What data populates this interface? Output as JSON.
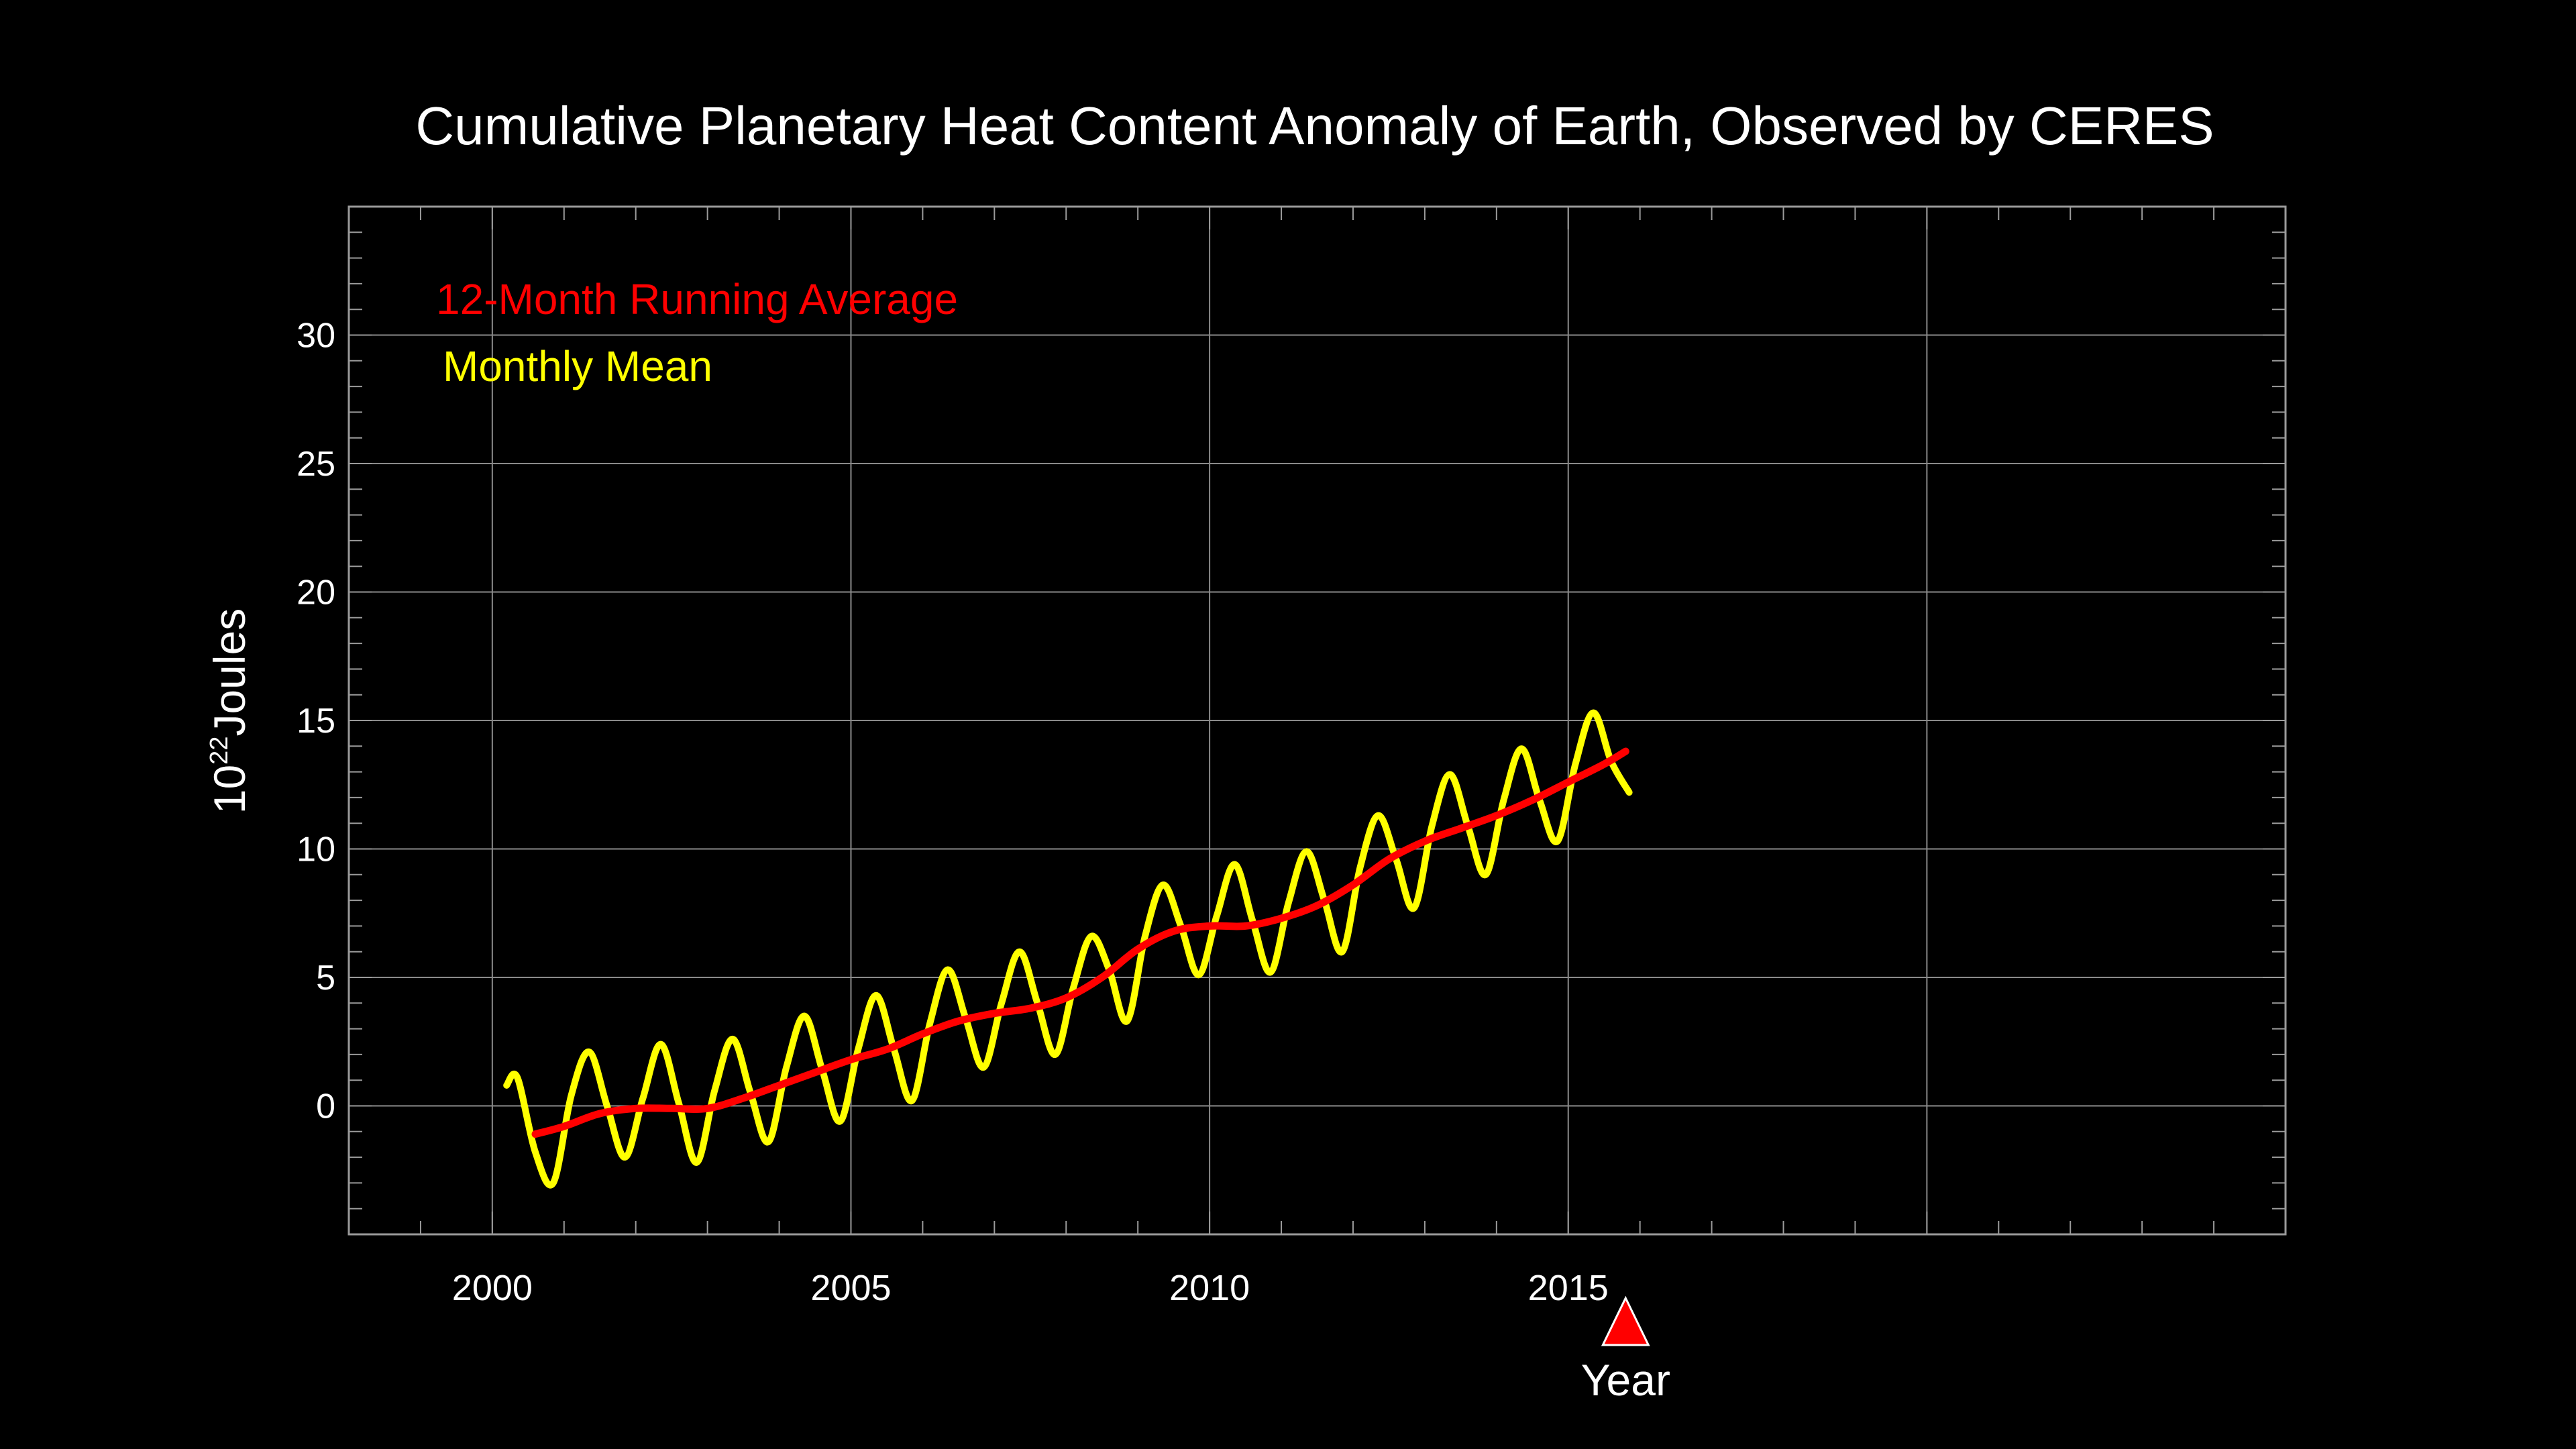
{
  "chart_data": {
    "type": "line",
    "title": "Cumulative Planetary Heat Content Anomaly of Earth, Observed by CERES",
    "ylabel_base": "10",
    "ylabel_exponent": "22",
    "ylabel_unit": "Joules",
    "xlabel": "Year",
    "xlim": [
      1998,
      2025
    ],
    "ylim": [
      -5,
      35
    ],
    "x_ticks": [
      2000,
      2005,
      2010,
      2015
    ],
    "y_ticks": [
      0,
      5,
      10,
      15,
      20,
      25,
      30
    ],
    "grid": true,
    "legend_position": "top-left",
    "marker_x": 2015.8,
    "series": [
      {
        "name": "12-Month Running Average",
        "color": "#ff0000",
        "x": [
          2000.6,
          2001.0,
          2001.5,
          2002.0,
          2002.5,
          2003.0,
          2003.5,
          2004.0,
          2004.5,
          2005.0,
          2005.5,
          2006.0,
          2006.5,
          2007.0,
          2007.5,
          2008.0,
          2008.5,
          2009.0,
          2009.5,
          2010.0,
          2010.5,
          2011.0,
          2011.5,
          2012.0,
          2012.5,
          2013.0,
          2013.5,
          2014.0,
          2014.5,
          2015.0,
          2015.5,
          2015.8
        ],
        "values": [
          -1.1,
          -0.8,
          -0.3,
          -0.1,
          -0.1,
          -0.1,
          0.3,
          0.8,
          1.3,
          1.8,
          2.2,
          2.8,
          3.3,
          3.6,
          3.8,
          4.2,
          5.0,
          6.1,
          6.8,
          7.0,
          7.0,
          7.3,
          7.8,
          8.6,
          9.6,
          10.3,
          10.8,
          11.3,
          11.9,
          12.6,
          13.3,
          13.8
        ]
      },
      {
        "name": "Monthly Mean",
        "color": "#ffff00",
        "x": [
          2000.2,
          2000.35,
          2000.6,
          2000.85,
          2001.1,
          2001.35,
          2001.6,
          2001.85,
          2002.1,
          2002.35,
          2002.6,
          2002.85,
          2003.1,
          2003.35,
          2003.6,
          2003.85,
          2004.1,
          2004.35,
          2004.6,
          2004.85,
          2005.1,
          2005.35,
          2005.6,
          2005.85,
          2006.1,
          2006.35,
          2006.6,
          2006.85,
          2007.1,
          2007.35,
          2007.6,
          2007.85,
          2008.1,
          2008.35,
          2008.6,
          2008.85,
          2009.1,
          2009.35,
          2009.6,
          2009.85,
          2010.1,
          2010.35,
          2010.6,
          2010.85,
          2011.1,
          2011.35,
          2011.6,
          2011.85,
          2012.1,
          2012.35,
          2012.6,
          2012.85,
          2013.1,
          2013.35,
          2013.6,
          2013.85,
          2014.1,
          2014.35,
          2014.6,
          2014.85,
          2015.1,
          2015.35,
          2015.6,
          2015.85
        ],
        "values": [
          0.8,
          1.1,
          -1.8,
          -3.0,
          0.4,
          2.1,
          0.0,
          -2.0,
          0.3,
          2.4,
          0.1,
          -2.2,
          0.6,
          2.6,
          0.5,
          -1.4,
          1.5,
          3.5,
          1.4,
          -0.6,
          2.2,
          4.3,
          2.2,
          0.2,
          3.2,
          5.3,
          3.4,
          1.5,
          4.0,
          6.0,
          4.0,
          2.0,
          4.6,
          6.6,
          5.3,
          3.3,
          6.6,
          8.6,
          7.0,
          5.1,
          7.4,
          9.4,
          7.2,
          5.2,
          7.9,
          9.9,
          8.0,
          6.0,
          9.3,
          11.3,
          9.6,
          7.7,
          10.9,
          12.9,
          10.9,
          9.0,
          11.9,
          13.9,
          11.9,
          10.3,
          13.3,
          15.3,
          13.4,
          12.2
        ]
      }
    ]
  }
}
